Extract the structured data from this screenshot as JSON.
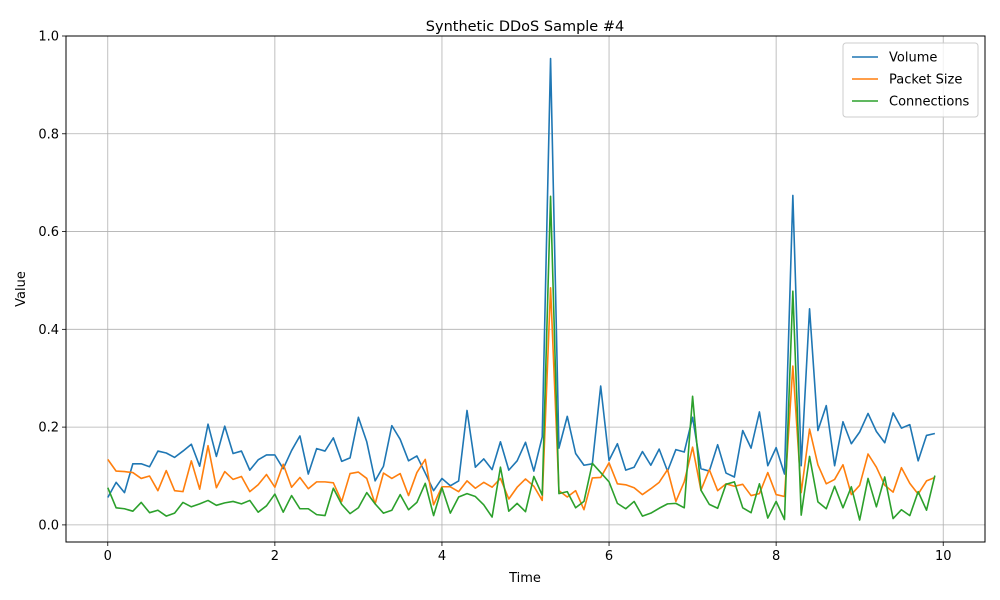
{
  "chart_data": {
    "type": "line",
    "title": "Synthetic DDoS Sample #4",
    "xlabel": "Time",
    "ylabel": "Value",
    "xlim": [
      -0.5,
      10.5
    ],
    "ylim": [
      -0.035,
      1.0
    ],
    "xticks": [
      0,
      2,
      4,
      6,
      8,
      10
    ],
    "xtick_labels": [
      "0",
      "2",
      "4",
      "6",
      "8",
      "10"
    ],
    "yticks": [
      0.0,
      0.2,
      0.4,
      0.6,
      0.8,
      1.0
    ],
    "ytick_labels": [
      "0.0",
      "0.2",
      "0.4",
      "0.6",
      "0.8",
      "1.0"
    ],
    "grid": true,
    "legend_position": "top-right",
    "x_start": 0,
    "x_step": 0.1,
    "series": [
      {
        "name": "Volume",
        "color": "#1f77b4",
        "values": [
          0.056,
          0.087,
          0.066,
          0.125,
          0.125,
          0.119,
          0.151,
          0.147,
          0.138,
          0.151,
          0.165,
          0.12,
          0.206,
          0.14,
          0.202,
          0.146,
          0.151,
          0.112,
          0.133,
          0.143,
          0.143,
          0.115,
          0.152,
          0.182,
          0.104,
          0.156,
          0.151,
          0.178,
          0.13,
          0.137,
          0.22,
          0.17,
          0.09,
          0.12,
          0.203,
          0.175,
          0.131,
          0.141,
          0.106,
          0.07,
          0.095,
          0.08,
          0.09,
          0.234,
          0.118,
          0.135,
          0.113,
          0.17,
          0.112,
          0.131,
          0.169,
          0.11,
          0.18,
          0.954,
          0.157,
          0.222,
          0.146,
          0.122,
          0.125,
          0.284,
          0.132,
          0.166,
          0.112,
          0.118,
          0.15,
          0.122,
          0.155,
          0.11,
          0.154,
          0.149,
          0.22,
          0.115,
          0.11,
          0.164,
          0.106,
          0.098,
          0.193,
          0.157,
          0.231,
          0.121,
          0.158,
          0.104,
          0.674,
          0.121,
          0.442,
          0.193,
          0.244,
          0.121,
          0.211,
          0.166,
          0.19,
          0.228,
          0.191,
          0.168,
          0.229,
          0.198,
          0.205,
          0.131,
          0.183,
          0.187
        ]
      },
      {
        "name": "Packet Size",
        "color": "#ff7f0e",
        "values": [
          0.134,
          0.11,
          0.109,
          0.107,
          0.095,
          0.1,
          0.07,
          0.111,
          0.07,
          0.068,
          0.131,
          0.073,
          0.162,
          0.076,
          0.109,
          0.093,
          0.099,
          0.068,
          0.082,
          0.103,
          0.077,
          0.124,
          0.077,
          0.097,
          0.074,
          0.088,
          0.088,
          0.086,
          0.048,
          0.105,
          0.108,
          0.095,
          0.043,
          0.106,
          0.095,
          0.105,
          0.06,
          0.107,
          0.134,
          0.041,
          0.078,
          0.078,
          0.068,
          0.09,
          0.075,
          0.087,
          0.077,
          0.095,
          0.053,
          0.077,
          0.094,
          0.079,
          0.05,
          0.485,
          0.07,
          0.057,
          0.07,
          0.031,
          0.096,
          0.097,
          0.127,
          0.084,
          0.082,
          0.076,
          0.062,
          0.074,
          0.087,
          0.113,
          0.048,
          0.088,
          0.159,
          0.071,
          0.113,
          0.07,
          0.084,
          0.079,
          0.083,
          0.06,
          0.064,
          0.107,
          0.062,
          0.058,
          0.325,
          0.066,
          0.196,
          0.123,
          0.084,
          0.093,
          0.123,
          0.062,
          0.081,
          0.145,
          0.118,
          0.081,
          0.067,
          0.117,
          0.085,
          0.063,
          0.09,
          0.097
        ]
      },
      {
        "name": "Connections",
        "color": "#2ca02c",
        "values": [
          0.076,
          0.035,
          0.033,
          0.028,
          0.046,
          0.025,
          0.03,
          0.018,
          0.024,
          0.046,
          0.037,
          0.043,
          0.05,
          0.04,
          0.045,
          0.048,
          0.043,
          0.05,
          0.026,
          0.039,
          0.063,
          0.026,
          0.06,
          0.033,
          0.033,
          0.021,
          0.019,
          0.075,
          0.042,
          0.023,
          0.035,
          0.066,
          0.043,
          0.024,
          0.03,
          0.062,
          0.031,
          0.046,
          0.085,
          0.019,
          0.076,
          0.024,
          0.057,
          0.064,
          0.058,
          0.041,
          0.016,
          0.118,
          0.028,
          0.044,
          0.027,
          0.099,
          0.061,
          0.672,
          0.064,
          0.068,
          0.035,
          0.048,
          0.126,
          0.107,
          0.088,
          0.044,
          0.033,
          0.048,
          0.018,
          0.024,
          0.034,
          0.043,
          0.044,
          0.035,
          0.263,
          0.071,
          0.042,
          0.034,
          0.083,
          0.088,
          0.035,
          0.025,
          0.084,
          0.014,
          0.048,
          0.011,
          0.478,
          0.02,
          0.14,
          0.047,
          0.033,
          0.079,
          0.035,
          0.078,
          0.01,
          0.095,
          0.037,
          0.098,
          0.013,
          0.031,
          0.019,
          0.068,
          0.03,
          0.101
        ]
      }
    ]
  }
}
